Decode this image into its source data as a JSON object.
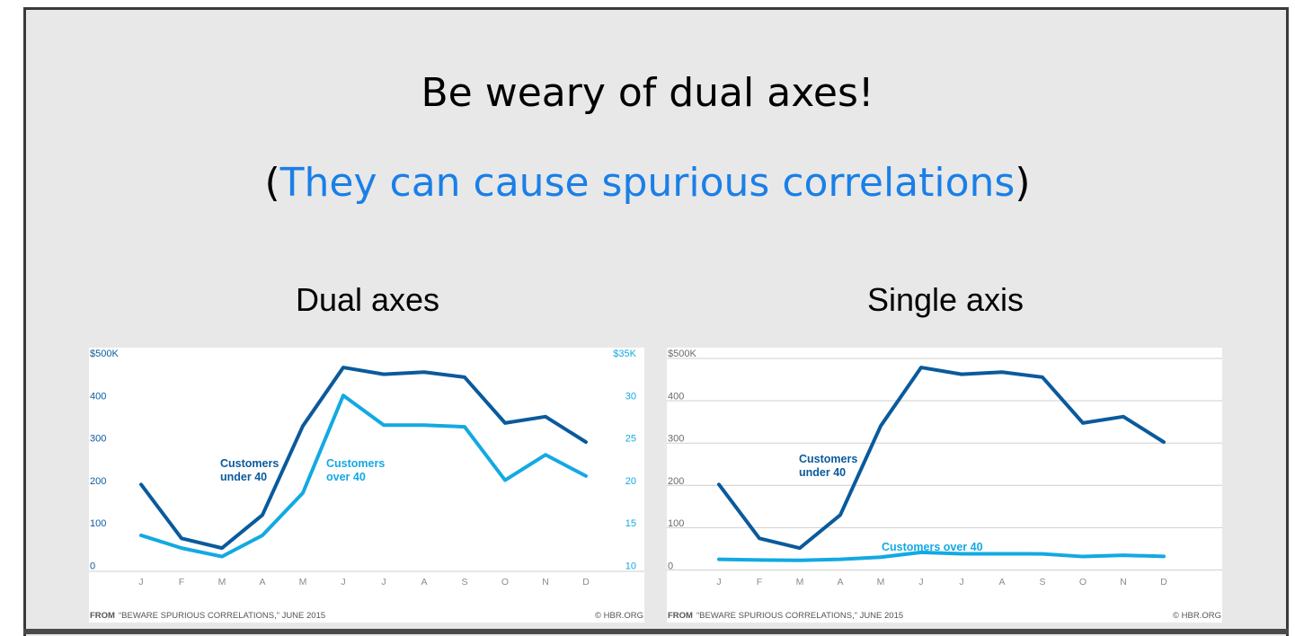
{
  "slide": {
    "title": "Be weary of dual axes!",
    "subtitle_open": "(",
    "subtitle_link": "They can cause spurious correlations",
    "subtitle_close": ")",
    "link_color": "#1a7fe8"
  },
  "panels": {
    "dual_title": "Dual axes",
    "single_title": "Single axis"
  },
  "colors": {
    "under40": "#0a5a9c",
    "over40": "#13a9e3",
    "tick_left": "#0a5a9c",
    "tick_right": "#13a9e3",
    "grid": "#cfcfcf",
    "month": "#8a8a8a"
  },
  "chart_data": [
    {
      "type": "line",
      "title": "",
      "months": [
        "J",
        "F",
        "M",
        "A",
        "M",
        "J",
        "J",
        "A",
        "S",
        "O",
        "N",
        "D"
      ],
      "left_axis": {
        "ticks": [
          "$500K",
          "400",
          "300",
          "200",
          "100",
          "0"
        ],
        "ylim": [
          0,
          500
        ]
      },
      "right_axis": {
        "ticks": [
          "$35K",
          "30",
          "25",
          "20",
          "15",
          "10"
        ],
        "ylim": [
          10,
          35
        ]
      },
      "grid": false,
      "series": [
        {
          "name": "Customers under 40",
          "label_line1": "Customers",
          "label_line2": "under 40",
          "axis": "left",
          "values": [
            190,
            63,
            40,
            118,
            328,
            466,
            450,
            455,
            443,
            335,
            350,
            290
          ]
        },
        {
          "name": "Customers over 40",
          "label_line1": "Customers",
          "label_line2": "over 40",
          "axis": "right",
          "values": [
            13.5,
            12.0,
            11.0,
            13.5,
            18.5,
            30.0,
            26.5,
            26.5,
            26.3,
            20.0,
            23.0,
            20.5
          ]
        }
      ],
      "footer_from": "FROM",
      "footer_source": "“BEWARE SPURIOUS CORRELATIONS,” JUNE 2015",
      "footer_credit": "© HBR.ORG"
    },
    {
      "type": "line",
      "title": "",
      "months": [
        "J",
        "F",
        "M",
        "A",
        "M",
        "J",
        "J",
        "A",
        "S",
        "O",
        "N",
        "D"
      ],
      "left_axis": {
        "ticks": [
          "$500K",
          "400",
          "300",
          "200",
          "100",
          "0"
        ],
        "ylim": [
          0,
          500
        ]
      },
      "grid": true,
      "series": [
        {
          "name": "Customers under 40",
          "label_line1": "Customers",
          "label_line2": "under 40",
          "values": [
            190,
            63,
            40,
            118,
            328,
            466,
            450,
            455,
            443,
            335,
            350,
            290
          ]
        },
        {
          "name": "Customers over 40",
          "label_line1": "Customers over 40",
          "label_line2": "",
          "values": [
            13.5,
            12.0,
            11.0,
            13.5,
            18.5,
            30.0,
            26.5,
            26.5,
            26.3,
            20.0,
            23.0,
            20.5
          ]
        }
      ],
      "footer_from": "FROM",
      "footer_source": "“BEWARE SPURIOUS CORRELATIONS,” JUNE 2015",
      "footer_credit": "© HBR.ORG"
    }
  ]
}
